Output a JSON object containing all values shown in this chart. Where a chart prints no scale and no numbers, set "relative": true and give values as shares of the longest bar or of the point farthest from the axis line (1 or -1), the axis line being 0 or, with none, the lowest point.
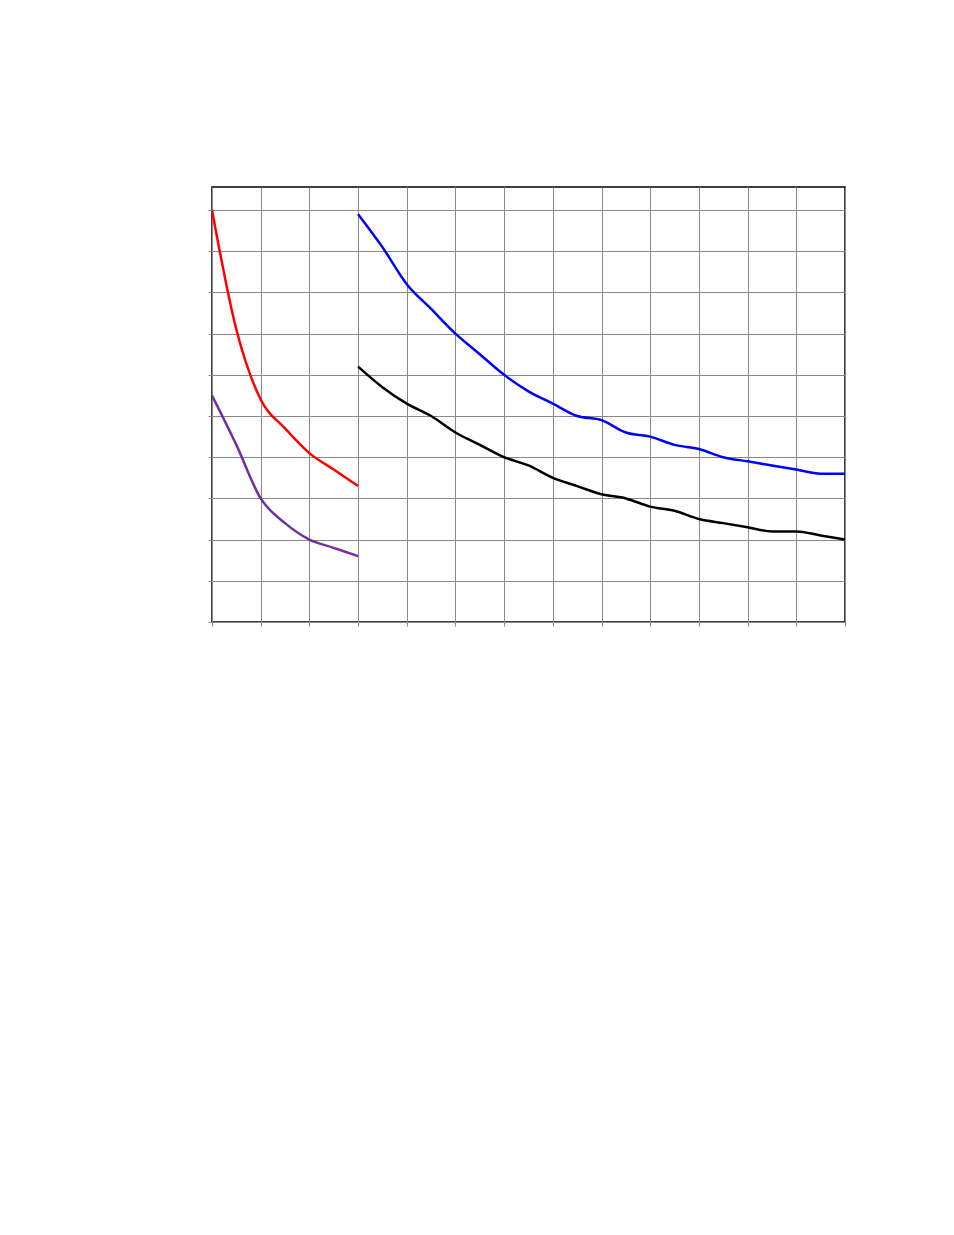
{
  "chart_data": {
    "type": "line",
    "relative": true,
    "grid": true,
    "categories": [
      null,
      null,
      null,
      null,
      null,
      null,
      null,
      null,
      null,
      null,
      null,
      null,
      null,
      null,
      null,
      null,
      null,
      null,
      null,
      null,
      null,
      null,
      null,
      null,
      null,
      null,
      null
    ],
    "series": [
      {
        "color": "#7030a0",
        "values": [
          0.55,
          0.43,
          0.3,
          0.24,
          0.2,
          0.18,
          0.16,
          null,
          null,
          null,
          null,
          null,
          null,
          null,
          null,
          null,
          null,
          null,
          null,
          null,
          null,
          null,
          null,
          null,
          null,
          null,
          null
        ]
      },
      {
        "color": "#ff0000",
        "values": [
          1.0,
          0.71,
          0.54,
          0.47,
          0.41,
          0.37,
          0.33,
          null,
          null,
          null,
          null,
          null,
          null,
          null,
          null,
          null,
          null,
          null,
          null,
          null,
          null,
          null,
          null,
          null,
          null,
          null,
          null
        ]
      },
      {
        "color": "#000000",
        "values": [
          null,
          null,
          null,
          null,
          null,
          null,
          0.62,
          0.57,
          0.53,
          0.5,
          0.46,
          0.43,
          0.4,
          0.38,
          0.35,
          0.33,
          0.31,
          0.3,
          0.28,
          0.27,
          0.25,
          0.24,
          0.23,
          0.22,
          0.22,
          0.21,
          0.2
        ]
      },
      {
        "color": "#0000ff",
        "values": [
          null,
          null,
          null,
          null,
          null,
          null,
          0.99,
          0.91,
          0.82,
          0.76,
          0.7,
          0.65,
          0.6,
          0.56,
          0.53,
          0.5,
          0.49,
          0.46,
          0.45,
          0.43,
          0.42,
          0.4,
          0.39,
          0.38,
          0.37,
          0.36,
          0.36
        ]
      }
    ]
  }
}
